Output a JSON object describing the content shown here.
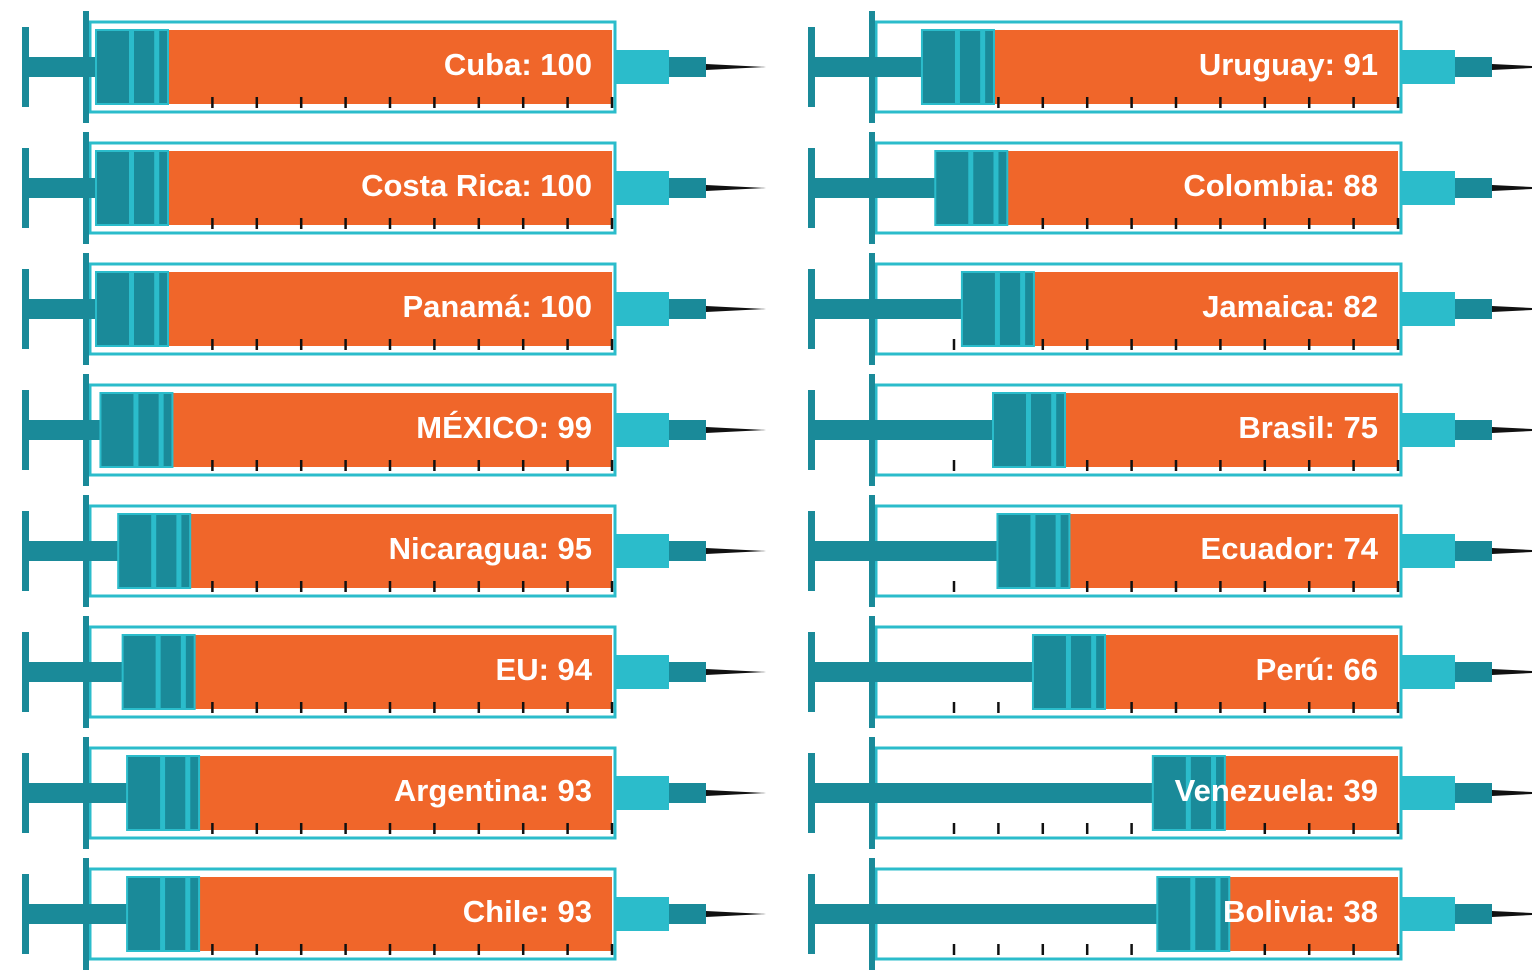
{
  "chart_data": {
    "type": "syringe",
    "values": [
      100,
      100,
      100,
      99,
      95,
      94,
      93,
      93,
      91,
      88,
      82,
      75,
      74,
      66,
      39,
      38
    ],
    "value_labels": [
      "Cuba: 100",
      "Costa Rica: 100",
      "Panamá: 100",
      "MÉXICO: 99",
      "Nicaragua: 95",
      "EU: 94",
      "Argentina: 93",
      "Chile: 93",
      "Uruguay: 91",
      "Colombia: 88",
      "Jamaica: 82",
      "Brasil: 75",
      "Ecuador: 74",
      "Perú: 66",
      "Venezuela: 39",
      "Bolivia: 38"
    ],
    "xlim": [
      0,
      100
    ],
    "color": "#f0662a"
  }
}
